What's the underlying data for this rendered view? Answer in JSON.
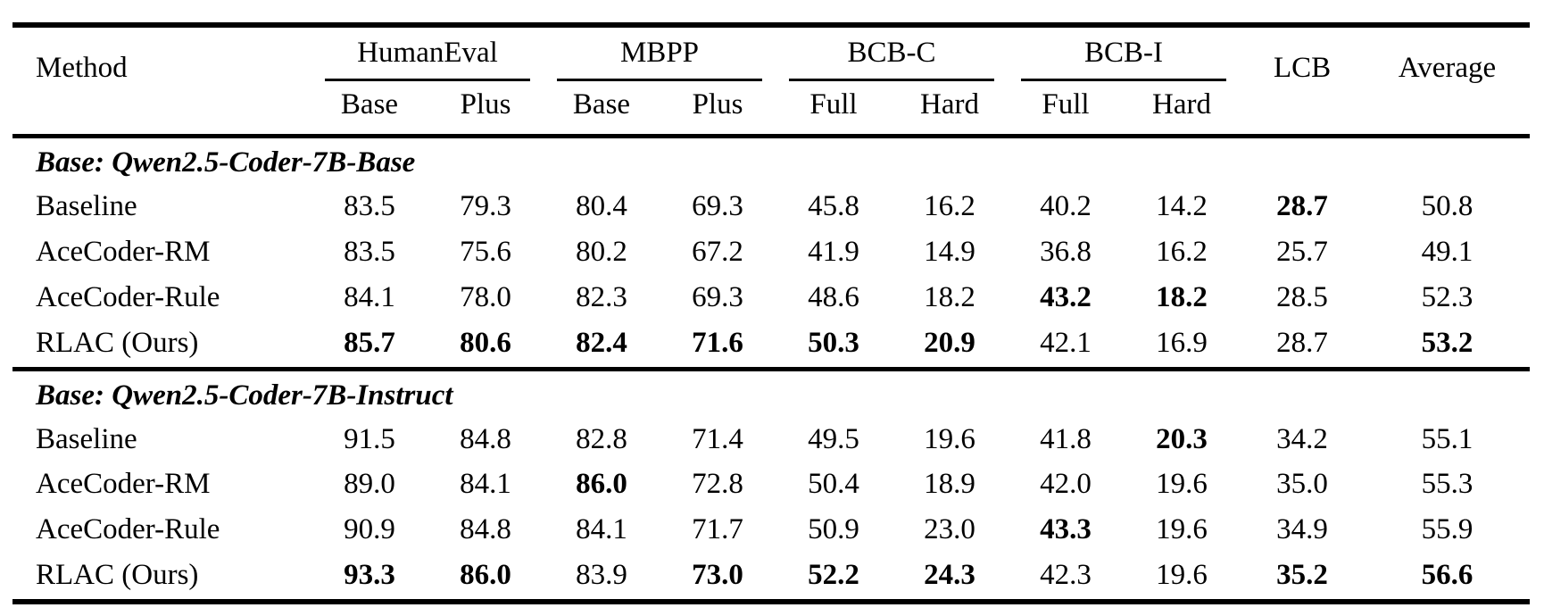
{
  "table": {
    "header": {
      "method": "Method",
      "groups": [
        {
          "label": "HumanEval",
          "sub": [
            "Base",
            "Plus"
          ]
        },
        {
          "label": "MBPP",
          "sub": [
            "Base",
            "Plus"
          ]
        },
        {
          "label": "BCB-C",
          "sub": [
            "Full",
            "Hard"
          ]
        },
        {
          "label": "BCB-I",
          "sub": [
            "Full",
            "Hard"
          ]
        }
      ],
      "lcb": "LCB",
      "average": "Average"
    },
    "sections": [
      {
        "title": "Base: Qwen2.5-Coder-7B-Base",
        "rows": [
          {
            "method": "Baseline",
            "values": [
              "83.5",
              "79.3",
              "80.4",
              "69.3",
              "45.8",
              "16.2",
              "40.2",
              "14.2",
              "28.7",
              "50.8"
            ],
            "bold": [
              0,
              0,
              0,
              0,
              0,
              0,
              0,
              0,
              1,
              0
            ]
          },
          {
            "method": "AceCoder-RM",
            "values": [
              "83.5",
              "75.6",
              "80.2",
              "67.2",
              "41.9",
              "14.9",
              "36.8",
              "16.2",
              "25.7",
              "49.1"
            ],
            "bold": [
              0,
              0,
              0,
              0,
              0,
              0,
              0,
              0,
              0,
              0
            ]
          },
          {
            "method": "AceCoder-Rule",
            "values": [
              "84.1",
              "78.0",
              "82.3",
              "69.3",
              "48.6",
              "18.2",
              "43.2",
              "18.2",
              "28.5",
              "52.3"
            ],
            "bold": [
              0,
              0,
              0,
              0,
              0,
              0,
              1,
              1,
              0,
              0
            ]
          },
          {
            "method": "RLAC (Ours)",
            "values": [
              "85.7",
              "80.6",
              "82.4",
              "71.6",
              "50.3",
              "20.9",
              "42.1",
              "16.9",
              "28.7",
              "53.2"
            ],
            "bold": [
              1,
              1,
              1,
              1,
              1,
              1,
              0,
              0,
              0,
              1
            ]
          }
        ]
      },
      {
        "title": "Base: Qwen2.5-Coder-7B-Instruct",
        "rows": [
          {
            "method": "Baseline",
            "values": [
              "91.5",
              "84.8",
              "82.8",
              "71.4",
              "49.5",
              "19.6",
              "41.8",
              "20.3",
              "34.2",
              "55.1"
            ],
            "bold": [
              0,
              0,
              0,
              0,
              0,
              0,
              0,
              1,
              0,
              0
            ]
          },
          {
            "method": "AceCoder-RM",
            "values": [
              "89.0",
              "84.1",
              "86.0",
              "72.8",
              "50.4",
              "18.9",
              "42.0",
              "19.6",
              "35.0",
              "55.3"
            ],
            "bold": [
              0,
              0,
              1,
              0,
              0,
              0,
              0,
              0,
              0,
              0
            ]
          },
          {
            "method": "AceCoder-Rule",
            "values": [
              "90.9",
              "84.8",
              "84.1",
              "71.7",
              "50.9",
              "23.0",
              "43.3",
              "19.6",
              "34.9",
              "55.9"
            ],
            "bold": [
              0,
              0,
              0,
              0,
              0,
              0,
              1,
              0,
              0,
              0
            ]
          },
          {
            "method": "RLAC (Ours)",
            "values": [
              "93.3",
              "86.0",
              "83.9",
              "73.0",
              "52.2",
              "24.3",
              "42.3",
              "19.6",
              "35.2",
              "56.6"
            ],
            "bold": [
              1,
              1,
              0,
              1,
              1,
              1,
              0,
              0,
              1,
              1
            ]
          }
        ]
      }
    ]
  }
}
